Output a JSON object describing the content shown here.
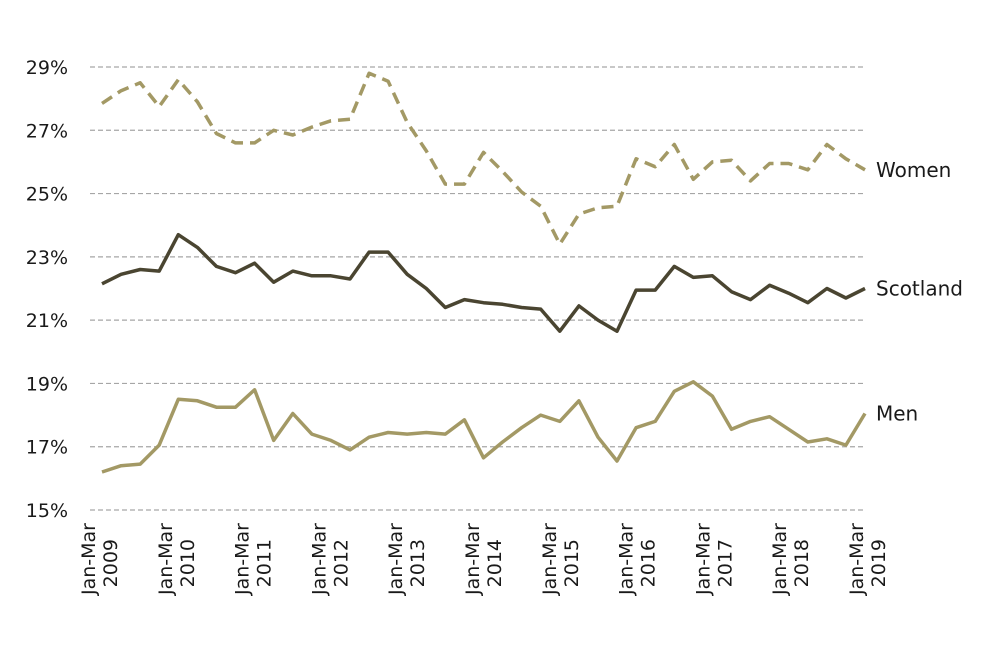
{
  "chart_data": {
    "type": "line",
    "ylim": [
      15,
      29
    ],
    "y_ticks": [
      15,
      17,
      19,
      21,
      23,
      25,
      27,
      29
    ],
    "y_tick_labels": [
      "15%",
      "17%",
      "19%",
      "21%",
      "23%",
      "25%",
      "27%",
      "29%"
    ],
    "grid": "horizontal dashed",
    "x_tick_labels": [
      {
        "period": "Jan-Mar",
        "year": "2009"
      },
      {
        "period": "Jan-Mar",
        "year": "2010"
      },
      {
        "period": "Jan-Mar",
        "year": "2011"
      },
      {
        "period": "Jan-Mar",
        "year": "2012"
      },
      {
        "period": "Jan-Mar",
        "year": "2013"
      },
      {
        "period": "Jan-Mar",
        "year": "2014"
      },
      {
        "period": "Jan-Mar",
        "year": "2015"
      },
      {
        "period": "Jan-Mar",
        "year": "2016"
      },
      {
        "period": "Jan-Mar",
        "year": "2017"
      },
      {
        "period": "Jan-Mar",
        "year": "2018"
      },
      {
        "period": "Jan-Mar",
        "year": "2019"
      }
    ],
    "series": [
      {
        "name": "Women",
        "color": "#a39965",
        "style": "dashed",
        "values": [
          27.85,
          28.25,
          28.5,
          27.75,
          28.6,
          27.9,
          26.9,
          26.6,
          26.6,
          27.0,
          26.85,
          27.1,
          27.3,
          27.35,
          28.8,
          28.55,
          27.25,
          26.35,
          25.3,
          25.3,
          26.3,
          25.7,
          25.05,
          24.6,
          23.4,
          24.35,
          24.55,
          24.6,
          26.1,
          25.85,
          26.55,
          25.45,
          26.0,
          26.05,
          25.4,
          25.95,
          25.95,
          25.75,
          26.55,
          26.1,
          25.75
        ]
      },
      {
        "name": "Scotland",
        "color": "#4a4531",
        "style": "solid",
        "values": [
          22.15,
          22.45,
          22.6,
          22.55,
          23.7,
          23.3,
          22.7,
          22.5,
          22.8,
          22.2,
          22.55,
          22.4,
          22.4,
          22.3,
          23.15,
          23.15,
          22.45,
          22.0,
          21.4,
          21.65,
          21.55,
          21.5,
          21.4,
          21.35,
          20.65,
          21.45,
          21.0,
          20.65,
          21.95,
          21.95,
          22.7,
          22.35,
          22.4,
          21.9,
          21.65,
          22.1,
          21.85,
          21.55,
          22.0,
          21.7,
          22.0
        ]
      },
      {
        "name": "Men",
        "color": "#a39965",
        "style": "solid",
        "values": [
          16.2,
          16.4,
          16.45,
          17.05,
          18.5,
          18.45,
          18.25,
          18.25,
          18.8,
          17.2,
          18.05,
          17.4,
          17.2,
          16.9,
          17.3,
          17.45,
          17.4,
          17.45,
          17.4,
          17.85,
          16.65,
          17.15,
          17.6,
          18.0,
          17.8,
          18.45,
          17.3,
          16.55,
          17.6,
          17.8,
          18.75,
          19.05,
          18.6,
          17.55,
          17.8,
          17.95,
          17.55,
          17.15,
          17.25,
          17.05,
          18.05
        ]
      }
    ]
  }
}
